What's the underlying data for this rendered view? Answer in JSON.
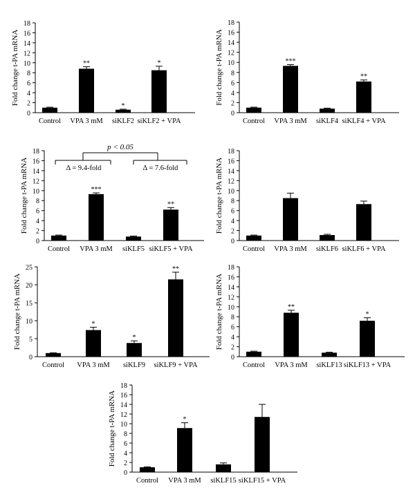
{
  "figure": {
    "y_axis_label": "Fold change t-PA mRNA"
  },
  "chart_data": [
    {
      "type": "bar",
      "categories": [
        "Control",
        "VPA 3 mM",
        "siKLF2",
        "siKLF2 + VPA"
      ],
      "values": [
        1.0,
        8.8,
        0.6,
        8.5
      ],
      "errors": [
        0.1,
        0.4,
        0.1,
        0.8
      ],
      "significance": [
        "",
        "**",
        "*",
        "*"
      ],
      "ylabel": "Fold change t-PA mRNA",
      "ylim": [
        0,
        18
      ],
      "yticks": [
        0,
        2,
        4,
        6,
        8,
        10,
        12,
        14,
        16,
        18
      ]
    },
    {
      "type": "bar",
      "categories": [
        "Control",
        "VPA 3 mM",
        "siKLF4",
        "siKLF4 + VPA"
      ],
      "values": [
        1.0,
        9.3,
        0.8,
        6.2
      ],
      "errors": [
        0.1,
        0.25,
        0.1,
        0.3
      ],
      "significance": [
        "",
        "***",
        "",
        "**"
      ],
      "ylabel": "Fold change t-PA mRNA",
      "ylim": [
        0,
        18
      ],
      "yticks": [
        0,
        2,
        4,
        6,
        8,
        10,
        12,
        14,
        16,
        18
      ]
    },
    {
      "type": "bar",
      "categories": [
        "Control",
        "VPA 3 mM",
        "siKLF5",
        "siKLF5 + VPA"
      ],
      "values": [
        1.0,
        9.3,
        0.8,
        6.2
      ],
      "errors": [
        0.1,
        0.25,
        0.1,
        0.4
      ],
      "significance": [
        "",
        "***",
        "",
        "**"
      ],
      "ylabel": "Fold change t-PA mRNA",
      "ylim": [
        0,
        18
      ],
      "yticks": [
        0,
        2,
        4,
        6,
        8,
        10,
        12,
        14,
        16,
        18
      ],
      "annotations": {
        "pvalue": "p < 0.05",
        "delta_left": "Δ = 9.4-fold",
        "delta_right": "Δ = 7.6-fold"
      }
    },
    {
      "type": "bar",
      "categories": [
        "Control",
        "VPA 3 mM",
        "siKLF6",
        "siKLF6 + VPA"
      ],
      "values": [
        1.0,
        8.5,
        1.1,
        7.3
      ],
      "errors": [
        0.1,
        1.0,
        0.15,
        0.6
      ],
      "significance": [
        "",
        "",
        "",
        ""
      ],
      "ylabel": "Fold change t-PA mRNA",
      "ylim": [
        0,
        18
      ],
      "yticks": [
        0,
        2,
        4,
        6,
        8,
        10,
        12,
        14,
        16,
        18
      ]
    },
    {
      "type": "bar",
      "categories": [
        "Control",
        "VPA 3 mM",
        "siKLF9",
        "siKLF9 + VPA"
      ],
      "values": [
        1.0,
        7.4,
        3.8,
        21.5
      ],
      "errors": [
        0.1,
        0.8,
        0.6,
        2.0
      ],
      "significance": [
        "",
        "*",
        "*",
        "**"
      ],
      "ylabel": "Fold change t-PA mRNA",
      "ylim": [
        0,
        25
      ],
      "yticks": [
        0,
        5,
        10,
        15,
        20,
        25
      ]
    },
    {
      "type": "bar",
      "categories": [
        "Control",
        "VPA 3 mM",
        "siKLF13",
        "siKLF13 + VPA"
      ],
      "values": [
        1.0,
        8.8,
        0.8,
        7.2
      ],
      "errors": [
        0.1,
        0.5,
        0.1,
        0.6
      ],
      "significance": [
        "",
        "**",
        "",
        "*"
      ],
      "ylabel": "Fold change t-PA mRNA",
      "ylim": [
        0,
        18
      ],
      "yticks": [
        0,
        2,
        4,
        6,
        8,
        10,
        12,
        14,
        16,
        18
      ]
    },
    {
      "type": "bar",
      "categories": [
        "Control",
        "VPA 3 mM",
        "siKLF15",
        "siKLF15 + VPA"
      ],
      "values": [
        1.0,
        9.1,
        1.6,
        11.4
      ],
      "errors": [
        0.1,
        1.1,
        0.3,
        2.6
      ],
      "significance": [
        "",
        "*",
        "",
        ""
      ],
      "ylabel": "Fold change t-PA mRNA",
      "ylim": [
        0,
        18
      ],
      "yticks": [
        0,
        2,
        4,
        6,
        8,
        10,
        12,
        14,
        16,
        18
      ]
    }
  ]
}
